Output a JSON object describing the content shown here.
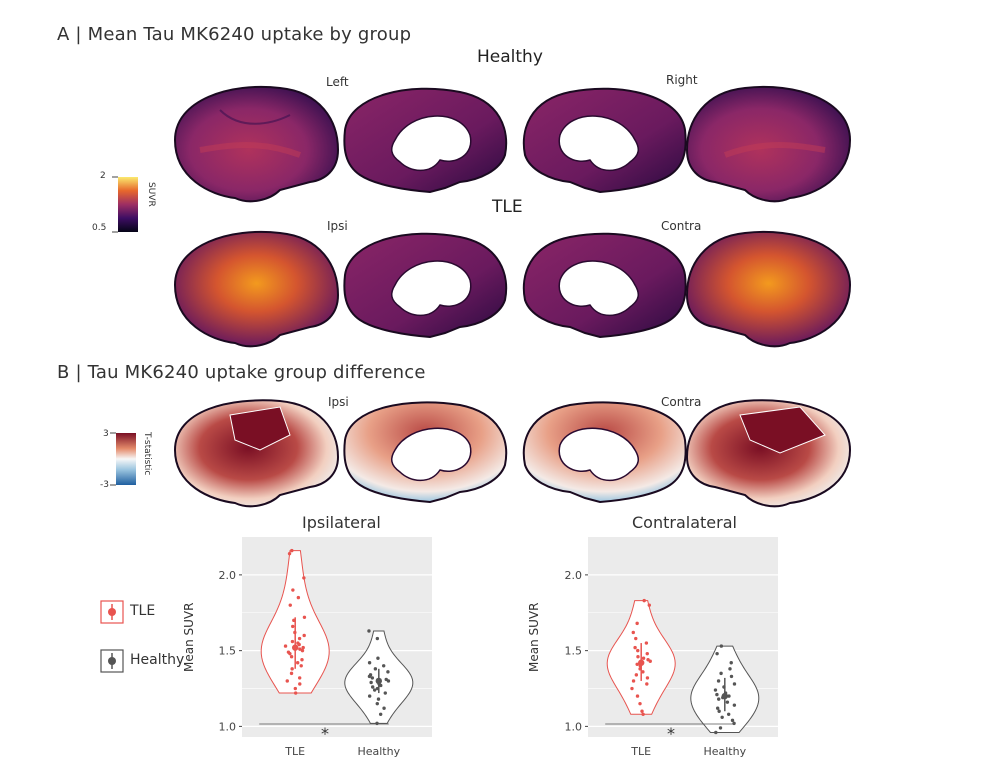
{
  "panel_a": {
    "title": "A | Mean Tau MK6240 uptake by group",
    "healthy_title": "Healthy",
    "tle_title": "TLE",
    "labels": {
      "left": "Left",
      "right": "Right",
      "ipsi": "Ipsi",
      "contra": "Contra"
    },
    "colorbar": {
      "label": "SUVR",
      "max": "2",
      "min": "0.5"
    }
  },
  "panel_b": {
    "title": "B | Tau MK6240 uptake group difference",
    "labels": {
      "ipsi": "Ipsi",
      "contra": "Contra"
    },
    "colorbar": {
      "label": "T-statistic",
      "max": "3",
      "min": "-3"
    }
  },
  "legend": {
    "tle": "TLE",
    "healthy": "Healthy"
  },
  "colors": {
    "tle": "#e8544f",
    "healthy": "#555555",
    "panel_bg": "#ebebeb"
  },
  "chart_data": [
    {
      "type": "violin",
      "title": "Ipsilateral",
      "ylabel": "Mean SUVR",
      "categories": [
        "TLE",
        "Healthy"
      ],
      "ylim": [
        0.93,
        2.25
      ],
      "yticks": [
        "1.0",
        "1.5",
        "2.0"
      ],
      "significance": "*",
      "series": [
        {
          "name": "TLE",
          "median": 1.52,
          "q1": 1.38,
          "q3": 1.72,
          "min": 1.22,
          "max": 2.16,
          "values": [
            2.16,
            2.14,
            1.98,
            1.9,
            1.85,
            1.8,
            1.72,
            1.7,
            1.66,
            1.62,
            1.6,
            1.58,
            1.56,
            1.55,
            1.54,
            1.53,
            1.52,
            1.51,
            1.5,
            1.49,
            1.48,
            1.46,
            1.44,
            1.42,
            1.4,
            1.38,
            1.35,
            1.32,
            1.3,
            1.28,
            1.25,
            1.22
          ]
        },
        {
          "name": "Healthy",
          "median": 1.3,
          "q1": 1.22,
          "q3": 1.38,
          "min": 1.02,
          "max": 1.63,
          "values": [
            1.63,
            1.58,
            1.45,
            1.42,
            1.4,
            1.38,
            1.36,
            1.34,
            1.33,
            1.32,
            1.31,
            1.3,
            1.29,
            1.28,
            1.27,
            1.26,
            1.25,
            1.24,
            1.22,
            1.2,
            1.18,
            1.15,
            1.12,
            1.08,
            1.02
          ]
        }
      ]
    },
    {
      "type": "violin",
      "title": "Contralateral",
      "ylabel": "Mean SUVR",
      "categories": [
        "TLE",
        "Healthy"
      ],
      "ylim": [
        0.93,
        2.25
      ],
      "yticks": [
        "1.0",
        "1.5",
        "2.0"
      ],
      "significance": "*",
      "series": [
        {
          "name": "TLE",
          "median": 1.42,
          "q1": 1.3,
          "q3": 1.55,
          "min": 1.08,
          "max": 1.83,
          "values": [
            1.83,
            1.8,
            1.68,
            1.62,
            1.58,
            1.55,
            1.52,
            1.5,
            1.48,
            1.46,
            1.45,
            1.44,
            1.43,
            1.42,
            1.41,
            1.4,
            1.38,
            1.36,
            1.34,
            1.32,
            1.3,
            1.28,
            1.25,
            1.2,
            1.15,
            1.1,
            1.08
          ]
        },
        {
          "name": "Healthy",
          "median": 1.2,
          "q1": 1.1,
          "q3": 1.32,
          "min": 0.96,
          "max": 1.53,
          "values": [
            1.53,
            1.48,
            1.42,
            1.38,
            1.35,
            1.33,
            1.3,
            1.28,
            1.26,
            1.24,
            1.22,
            1.21,
            1.2,
            1.19,
            1.18,
            1.16,
            1.14,
            1.12,
            1.1,
            1.08,
            1.06,
            1.04,
            1.02,
            0.99,
            0.96
          ]
        }
      ]
    }
  ]
}
